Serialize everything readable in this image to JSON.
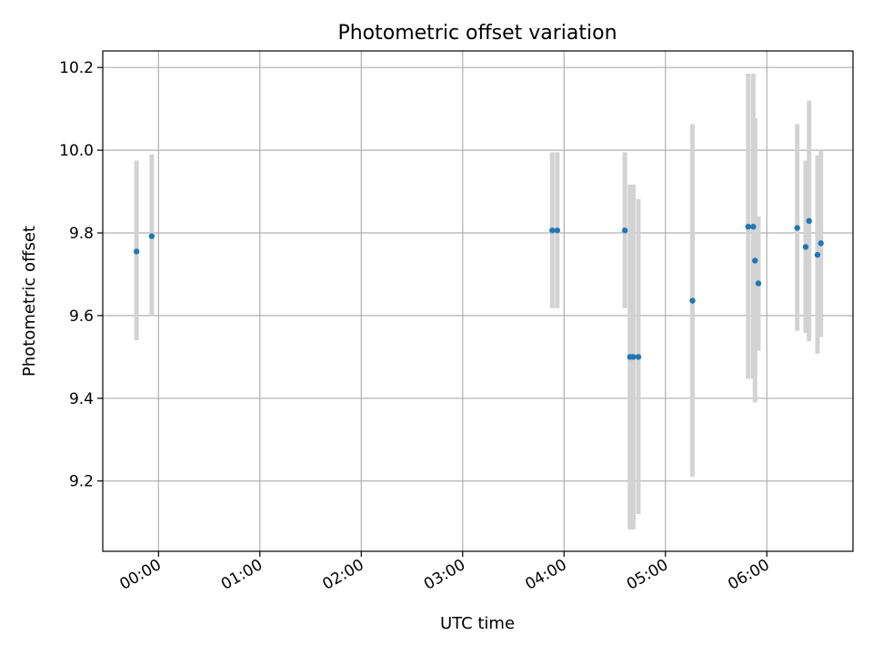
{
  "chart_data": {
    "type": "scatter",
    "title": "Photometric offset variation",
    "xlabel": "UTC time",
    "ylabel": "Photometric offset",
    "x_axis": {
      "kind": "time",
      "range": [
        "-00:33",
        "06:51"
      ],
      "ticks": [
        "00:00",
        "01:00",
        "02:00",
        "03:00",
        "04:00",
        "05:00",
        "06:00"
      ]
    },
    "y_axis": {
      "range": [
        9.03,
        10.24
      ],
      "ticks": [
        "9.2",
        "9.4",
        "9.6",
        "9.8",
        "10.0",
        "10.2"
      ]
    },
    "grid": true,
    "colors": {
      "point": "#1f77b4",
      "error_bar": "#d3d3d3",
      "grid": "#b0b0b0"
    },
    "points": [
      {
        "time": "-00:13",
        "y": 9.755,
        "err_low": 9.54,
        "err_high": 9.975
      },
      {
        "time": "-00:04",
        "y": 9.792,
        "err_low": 9.6,
        "err_high": 9.99
      },
      {
        "time": "03:53",
        "y": 9.806,
        "err_low": 9.618,
        "err_high": 9.995
      },
      {
        "time": "03:56",
        "y": 9.806,
        "err_low": 9.618,
        "err_high": 9.995
      },
      {
        "time": "04:36",
        "y": 9.806,
        "err_low": 9.618,
        "err_high": 9.995
      },
      {
        "time": "04:39",
        "y": 9.5,
        "err_low": 9.083,
        "err_high": 9.917
      },
      {
        "time": "04:41",
        "y": 9.5,
        "err_low": 9.083,
        "err_high": 9.917
      },
      {
        "time": "04:44",
        "y": 9.5,
        "err_low": 9.12,
        "err_high": 9.882
      },
      {
        "time": "05:16",
        "y": 9.636,
        "err_low": 9.21,
        "err_high": 10.063
      },
      {
        "time": "05:49",
        "y": 9.815,
        "err_low": 9.447,
        "err_high": 10.185
      },
      {
        "time": "05:52",
        "y": 9.815,
        "err_low": 9.447,
        "err_high": 10.185
      },
      {
        "time": "05:53",
        "y": 9.733,
        "err_low": 9.39,
        "err_high": 10.078
      },
      {
        "time": "05:55",
        "y": 9.678,
        "err_low": 9.515,
        "err_high": 9.84
      },
      {
        "time": "06:18",
        "y": 9.812,
        "err_low": 9.563,
        "err_high": 10.063
      },
      {
        "time": "06:23",
        "y": 9.766,
        "err_low": 9.558,
        "err_high": 9.975
      },
      {
        "time": "06:25",
        "y": 9.829,
        "err_low": 9.538,
        "err_high": 10.12
      },
      {
        "time": "06:30",
        "y": 9.747,
        "err_low": 9.508,
        "err_high": 9.987
      },
      {
        "time": "06:32",
        "y": 9.775,
        "err_low": 9.548,
        "err_high": 10.0
      }
    ]
  }
}
